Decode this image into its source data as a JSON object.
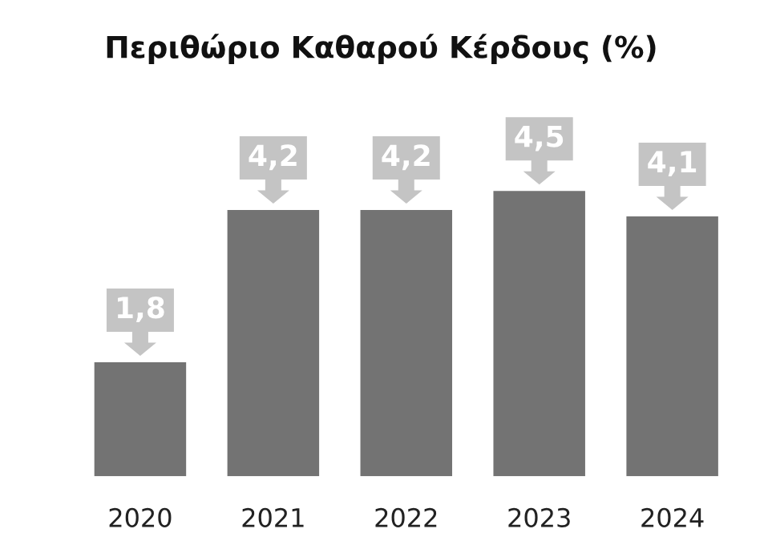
{
  "chart_data": {
    "type": "bar",
    "title": "Περιθώριο Καθαρού Κέρδους (%)",
    "categories": [
      "2020",
      "2021",
      "2022",
      "2023",
      "2024"
    ],
    "values": [
      1.8,
      4.2,
      4.2,
      4.5,
      4.1
    ],
    "value_labels": [
      "1,8",
      "4,2",
      "4,2",
      "4,5",
      "4,1"
    ],
    "color": "#737373",
    "grid": false,
    "legend": false
  }
}
